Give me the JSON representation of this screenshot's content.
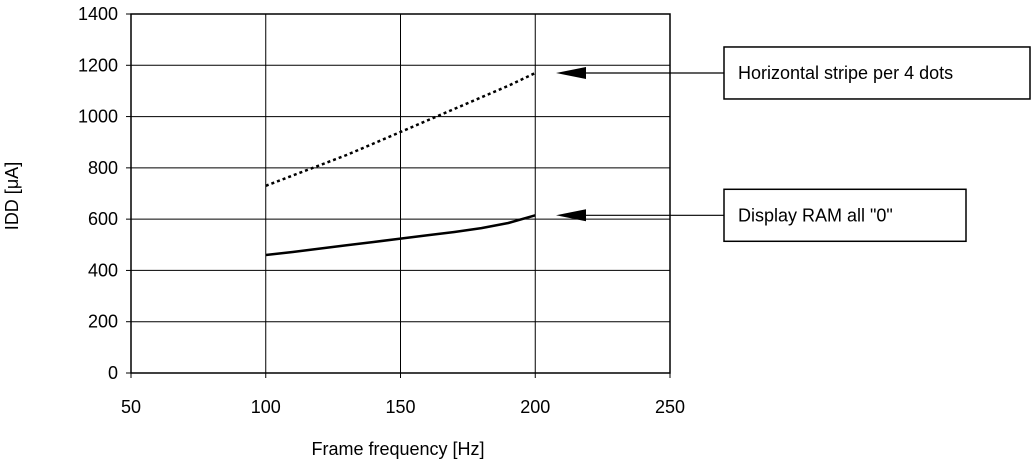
{
  "chart_data": {
    "type": "line",
    "title": "",
    "xlabel": "Frame frequency [Hz]",
    "ylabel": "IDD [μA]",
    "xlim": [
      50,
      250
    ],
    "ylim": [
      0,
      1400
    ],
    "xticks": [
      50,
      100,
      150,
      200,
      250
    ],
    "yticks": [
      0,
      200,
      400,
      600,
      800,
      1000,
      1200,
      1400
    ],
    "grid": true,
    "series": [
      {
        "name": "Horizontal stripe per 4 dots",
        "style": "dotted",
        "color": "#000000",
        "x": [
          100,
          110,
          120,
          130,
          140,
          150,
          160,
          170,
          180,
          190,
          200
        ],
        "y": [
          730,
          770,
          810,
          850,
          895,
          940,
          985,
          1030,
          1075,
          1120,
          1170
        ]
      },
      {
        "name": "Display RAM all \"0\"",
        "style": "solid",
        "color": "#000000",
        "x": [
          100,
          110,
          120,
          130,
          140,
          150,
          160,
          170,
          180,
          190,
          200
        ],
        "y": [
          460,
          472,
          485,
          498,
          511,
          524,
          537,
          550,
          565,
          585,
          615
        ]
      }
    ],
    "annotations": [
      {
        "text": "Horizontal stripe per 4 dots",
        "series": 0,
        "at_x": 200,
        "at_y": 1170
      },
      {
        "text": "Display RAM all \"0\"",
        "series": 1,
        "at_x": 200,
        "at_y": 615
      }
    ]
  }
}
